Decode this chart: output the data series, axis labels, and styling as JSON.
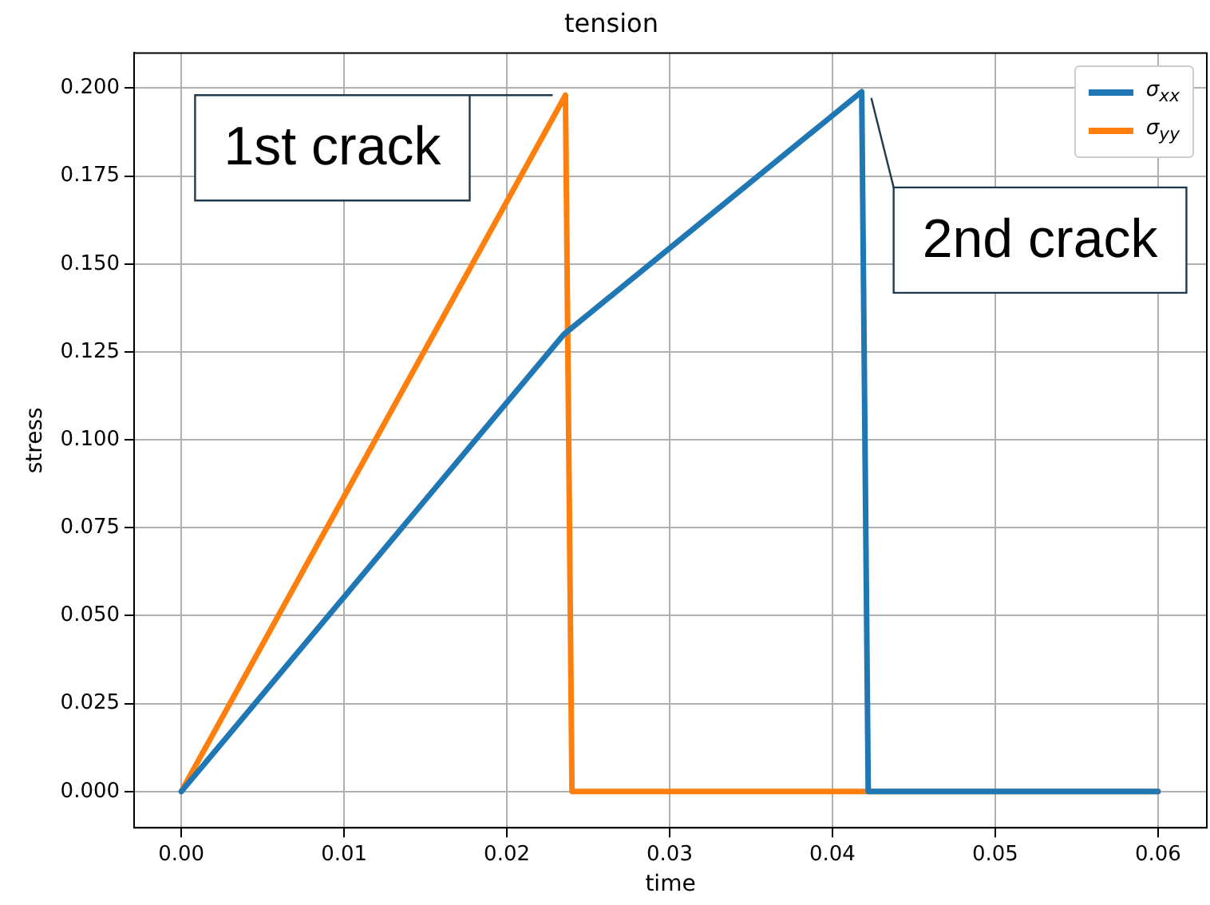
{
  "chart_data": {
    "type": "line",
    "title": "tension",
    "xlabel": "time",
    "ylabel": "stress",
    "xlim": [
      -0.0029,
      0.063
    ],
    "ylim": [
      -0.0103,
      0.21
    ],
    "xticks": [
      {
        "value": 0,
        "label": "0.00"
      },
      0.01,
      0.02,
      0.03,
      0.04,
      0.05,
      0.06
    ],
    "yticks": [
      {
        "value": 0,
        "label": "0.000"
      },
      0.025,
      {
        "value": 0.05,
        "label": "0.050"
      },
      0.075,
      {
        "value": 0.1,
        "label": "0.100"
      },
      0.125,
      {
        "value": 0.15,
        "label": "0.150"
      },
      0.175,
      {
        "value": 0.2,
        "label": "0.200"
      }
    ],
    "series": [
      {
        "name": "σ$_{xx}$",
        "color": "#1f77b4",
        "x": [
          0,
          0.0235,
          0.0418,
          0.0422,
          0.06
        ],
        "values": [
          0,
          0.13,
          0.199,
          0,
          0
        ]
      },
      {
        "name": "σ$_{yy}$",
        "color": "#ff7f0e",
        "x": [
          0,
          0.0236,
          0.024,
          0.06
        ],
        "values": [
          0,
          0.198,
          0,
          0
        ]
      }
    ],
    "annotations": [
      {
        "text": "1st crack",
        "x": 0.0236,
        "y": 0.198
      },
      {
        "text": "2nd crack",
        "x": 0.0418,
        "y": 0.199
      }
    ],
    "grid": true,
    "legend": "top right",
    "marker": "none",
    "line_style": "solid"
  }
}
